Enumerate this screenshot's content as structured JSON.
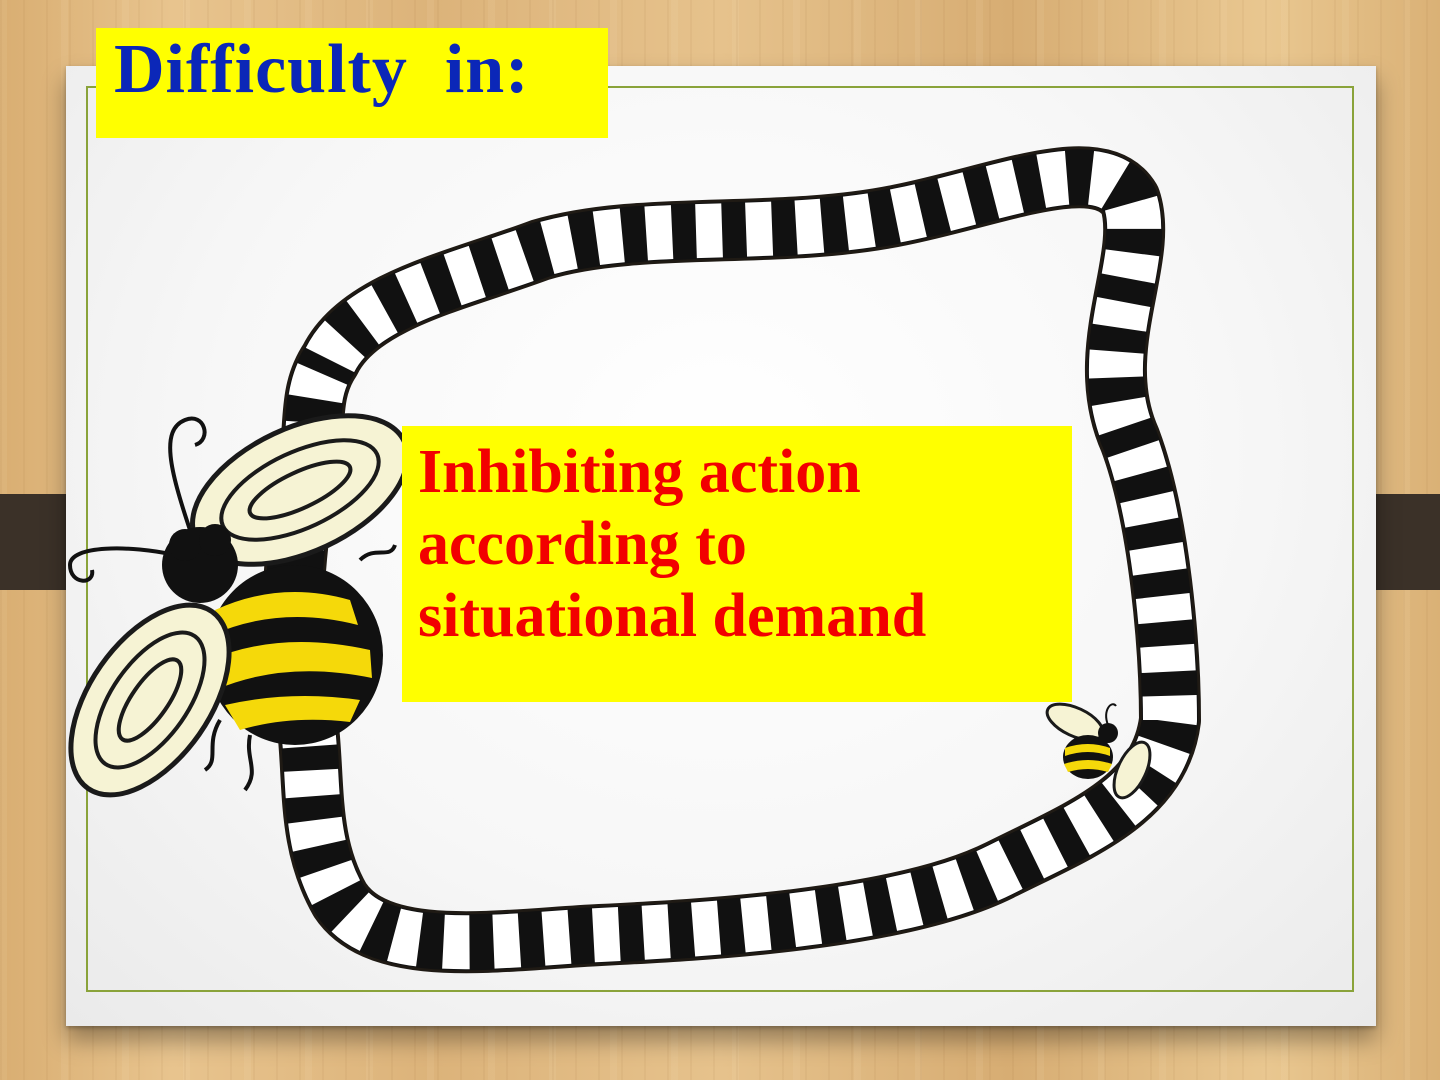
{
  "slide": {
    "title": "Difficulty  in:",
    "body_lines": [
      "Inhibiting action",
      "according to",
      "situational demand"
    ]
  },
  "colors": {
    "title_text": "#0b27b8",
    "title_bg": "#ffff00",
    "body_text": "#f20000",
    "body_bg": "#ffff00",
    "frame_border": "#8aa33a"
  },
  "icons": [
    "bee-large-icon",
    "bee-small-icon",
    "striped-frame-icon",
    "binder-clip-icon"
  ]
}
